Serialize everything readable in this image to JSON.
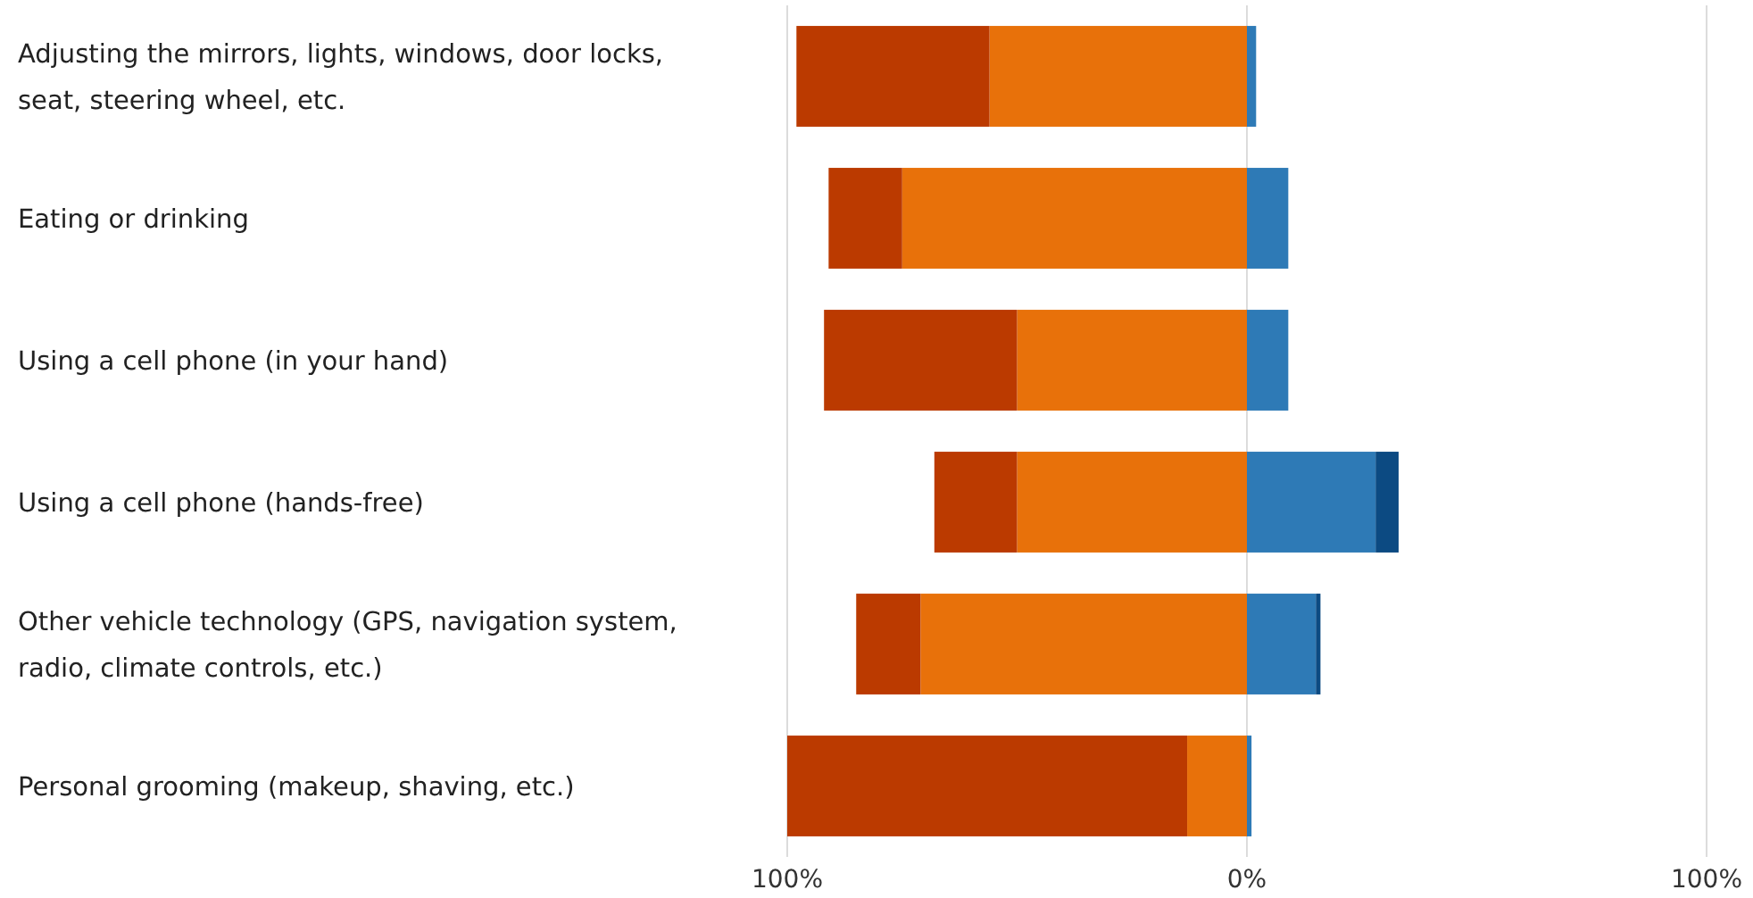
{
  "chart_data": {
    "type": "bar",
    "orientation": "horizontal",
    "stacked": true,
    "grid": "x",
    "categories": [
      "Adjusting the mirrors, lights, windows, door locks, seat, steering wheel, etc.",
      "Eating or drinking",
      "Using a cell phone (in your hand)",
      "Using a cell phone (hands-free)",
      "Other vehicle technology (GPS, navigation system, radio, climate controls, etc.)",
      "Personal grooming (makeup, shaving, etc.)"
    ],
    "series": [
      {
        "color": "#e8710a",
        "values": [
          -56,
          -75,
          -50,
          -50,
          -71,
          -13
        ]
      },
      {
        "color": "#bb3a00",
        "values": [
          -42,
          -16,
          -42,
          -18,
          -14,
          -87
        ]
      },
      {
        "color": "#2e7ab6",
        "values": [
          2,
          9,
          9,
          28,
          15,
          1
        ]
      },
      {
        "color": "#0c4a82",
        "values": [
          null,
          null,
          null,
          5,
          1,
          null
        ]
      }
    ],
    "xlim": [
      -100,
      100
    ],
    "xticks": [
      {
        "value": -100,
        "label": "100%"
      },
      {
        "value": 0,
        "label": "0%"
      },
      {
        "value": 100,
        "label": "100%"
      }
    ]
  }
}
